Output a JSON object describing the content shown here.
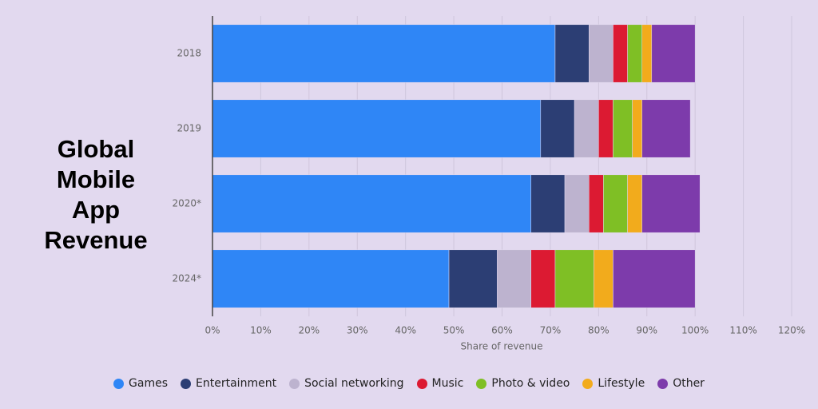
{
  "chart_data": {
    "type": "stacked-bar-horizontal",
    "title": "Global Mobile App Revenue",
    "x_label": "Share of revenue",
    "categories": [
      "2018",
      "2019",
      "2020*",
      "2024*"
    ],
    "series": [
      {
        "name": "Games",
        "color": "#2f86f6",
        "values": [
          71,
          68,
          66,
          49
        ]
      },
      {
        "name": "Entertainment",
        "color": "#2c3e74",
        "values": [
          7,
          7,
          7,
          10
        ]
      },
      {
        "name": "Social networking",
        "color": "#bdb3cf",
        "values": [
          5,
          5,
          5,
          7
        ]
      },
      {
        "name": "Music",
        "color": "#dc1a32",
        "values": [
          3,
          3,
          3,
          5
        ]
      },
      {
        "name": "Photo & video",
        "color": "#7fbf25",
        "values": [
          3,
          4,
          5,
          8
        ]
      },
      {
        "name": "Lifestyle",
        "color": "#f2ab1c",
        "values": [
          2,
          2,
          3,
          4
        ]
      },
      {
        "name": "Other",
        "color": "#7d3bab",
        "values": [
          9,
          10,
          12,
          17
        ]
      }
    ],
    "xlim": [
      0,
      120
    ],
    "xticks": [
      {
        "value": 0,
        "label": "0%"
      },
      {
        "value": 10,
        "label": "10%"
      },
      {
        "value": 20,
        "label": "20%"
      },
      {
        "value": 30,
        "label": "30%"
      },
      {
        "value": 40,
        "label": "40%"
      },
      {
        "value": 50,
        "label": "50%"
      },
      {
        "value": 60,
        "label": "60%"
      },
      {
        "value": 70,
        "label": "70%"
      },
      {
        "value": 80,
        "label": "80%"
      },
      {
        "value": 90,
        "label": "90%"
      },
      {
        "value": 100,
        "label": "100%"
      },
      {
        "value": 110,
        "label": "110%"
      },
      {
        "value": 120,
        "label": "120%"
      }
    ],
    "grid": true,
    "legend": "bottom"
  }
}
